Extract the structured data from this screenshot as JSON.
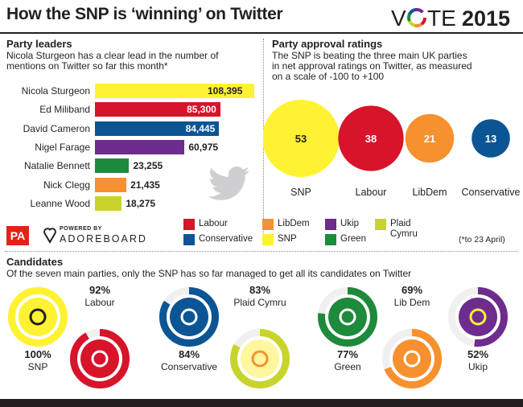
{
  "header": {
    "title": "How the SNP is ‘winning’ on Twitter",
    "vote_prefix": "V",
    "vote_suffix": "TE",
    "vote_year": "2015"
  },
  "leaders": {
    "heading": "Party leaders",
    "subtitle_line1": "Nicola Sturgeon has a clear lead in the number of",
    "subtitle_line2": "mentions on Twitter so far this month*"
  },
  "approval": {
    "heading": "Party approval ratings",
    "subtitle_line1": "The SNP is beating the three main UK parties",
    "subtitle_line2": "in net approval ratings on Twitter, as measured",
    "subtitle_line3": "on a scale of -100 to +100"
  },
  "legend": {
    "items": [
      {
        "label": "Labour",
        "color": "#d7142a"
      },
      {
        "label": "LibDem",
        "color": "#f7902f"
      },
      {
        "label": "Ukip",
        "color": "#6d2c8e"
      },
      {
        "label": "Plaid",
        "label2": "Cymru",
        "color": "#c8d42c"
      },
      {
        "label": "Conservative",
        "color": "#0b5595"
      },
      {
        "label": "SNP",
        "color": "#fff232"
      },
      {
        "label": "Green",
        "color": "#1e8a3c"
      }
    ],
    "footnote": "(*to 23 April)"
  },
  "branding": {
    "pa": "PA",
    "powered_by": "POWERED BY",
    "adoreboard": "ADOREBOARD"
  },
  "candidates": {
    "heading": "Candidates",
    "subtitle": "Of the seven main parties, only the SNP has so far managed to get all its candidates on Twitter"
  },
  "chart_data": [
    {
      "type": "bar",
      "title": "Party leaders",
      "categories": [
        "Nicola Sturgeon",
        "Ed Miliband",
        "David Cameron",
        "Nigel Farage",
        "Natalie Bennett",
        "Nick Clegg",
        "Leanne Wood"
      ],
      "values": [
        108395,
        85300,
        84445,
        60975,
        23255,
        21435,
        18275
      ],
      "value_labels": [
        "108,395",
        "85,300",
        "84,445",
        "60,975",
        "23,255",
        "21,435",
        "18,275"
      ],
      "colors": [
        "#fff232",
        "#d7142a",
        "#0b5595",
        "#6d2c8e",
        "#1e8a3c",
        "#f7902f",
        "#c8d42c"
      ],
      "label_inside": [
        false,
        true,
        true,
        false,
        false,
        false,
        false
      ]
    },
    {
      "type": "scatter",
      "title": "Party approval ratings",
      "categories": [
        "SNP",
        "Labour",
        "LibDem",
        "Conservative"
      ],
      "values": [
        53,
        38,
        21,
        13
      ],
      "colors": [
        "#fff232",
        "#d7142a",
        "#f7902f",
        "#0b5595"
      ]
    },
    {
      "type": "pie",
      "title": "Candidates",
      "categories": [
        "SNP",
        "Labour",
        "Conservative",
        "Plaid Cymru",
        "Green",
        "Lib Dem",
        "Ukip"
      ],
      "values": [
        100,
        92,
        84,
        83,
        77,
        69,
        52
      ],
      "value_labels": [
        "100%",
        "92%",
        "84%",
        "83%",
        "77%",
        "69%",
        "52%"
      ],
      "colors": [
        "#fff232",
        "#d7142a",
        "#0b5595",
        "#c8d42c",
        "#1e8a3c",
        "#f7902f",
        "#6d2c8e"
      ]
    }
  ]
}
